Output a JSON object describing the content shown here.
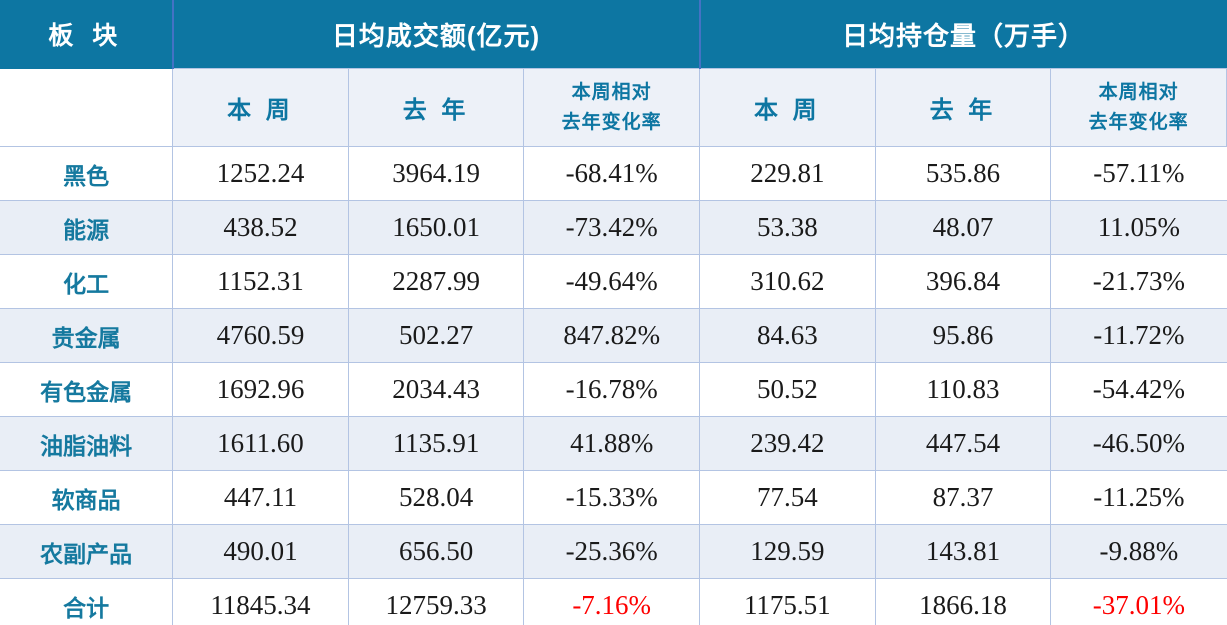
{
  "colors": {
    "header_bg": "#0d76a2",
    "header_text": "#ffffff",
    "subheader_bg": "#edf1f8",
    "subheader_text": "#0d76a2",
    "stripe_bg": "#e9eef6",
    "border": "#b3c4e3",
    "header_divider": "#4472c4",
    "sector_text": "#15799f",
    "number_text": "#1a1a1a",
    "negative_total_text": "#fe0000"
  },
  "table": {
    "header": {
      "sector": "板 块",
      "group_turnover": "日均成交额(亿元)",
      "group_position": "日均持仓量（万手）",
      "sub_week": "本 周",
      "sub_lastyear": "去 年",
      "sub_change_line1": "本周相对",
      "sub_change_line2": "去年变化率"
    },
    "rows": [
      {
        "sector": "黑色",
        "cells": [
          "1252.24",
          "3964.19",
          "-68.41%",
          "229.81",
          "535.86",
          "-57.11%"
        ]
      },
      {
        "sector": "能源",
        "cells": [
          "438.52",
          "1650.01",
          "-73.42%",
          "53.38",
          "48.07",
          "11.05%"
        ]
      },
      {
        "sector": "化工",
        "cells": [
          "1152.31",
          "2287.99",
          "-49.64%",
          "310.62",
          "396.84",
          "-21.73%"
        ]
      },
      {
        "sector": "贵金属",
        "cells": [
          "4760.59",
          "502.27",
          "847.82%",
          "84.63",
          "95.86",
          "-11.72%"
        ]
      },
      {
        "sector": "有色金属",
        "cells": [
          "1692.96",
          "2034.43",
          "-16.78%",
          "50.52",
          "110.83",
          "-54.42%"
        ]
      },
      {
        "sector": "油脂油料",
        "cells": [
          "1611.60",
          "1135.91",
          "41.88%",
          "239.42",
          "447.54",
          "-46.50%"
        ]
      },
      {
        "sector": "软商品",
        "cells": [
          "447.11",
          "528.04",
          "-15.33%",
          "77.54",
          "87.37",
          "-11.25%"
        ]
      },
      {
        "sector": "农副产品",
        "cells": [
          "490.01",
          "656.50",
          "-25.36%",
          "129.59",
          "143.81",
          "-9.88%"
        ]
      },
      {
        "sector": "合计",
        "cells": [
          "11845.34",
          "12759.33",
          "-7.16%",
          "1175.51",
          "1866.18",
          "-37.01%"
        ]
      }
    ]
  }
}
